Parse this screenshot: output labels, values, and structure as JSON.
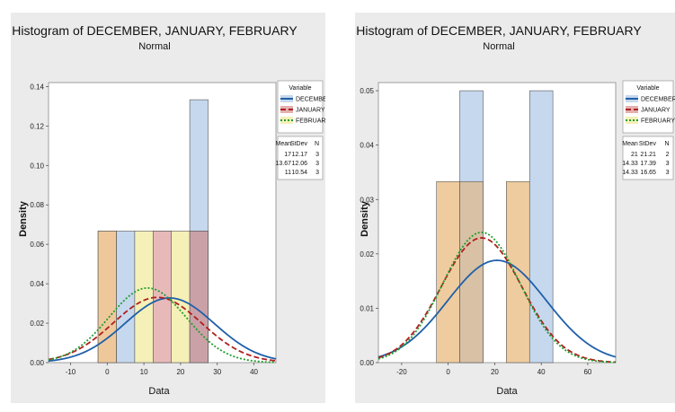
{
  "chart_data": [
    {
      "type": "histogram",
      "title": "Histogram of DECEMBER, JANUARY, FEBRUARY",
      "subtitle": "Normal",
      "xlabel": "Data",
      "ylabel": "Density",
      "xlim": [
        -16,
        46
      ],
      "ylim": [
        0,
        0.142
      ],
      "x_ticks": [
        -10,
        0,
        10,
        20,
        30,
        40
      ],
      "y_ticks": [
        0.0,
        0.02,
        0.04,
        0.06,
        0.08,
        0.1,
        0.12,
        0.14
      ],
      "y_tick_labels": [
        "0.00",
        "0.02",
        "0.04",
        "0.06",
        "0.08",
        "0.10",
        "0.12",
        "0.14"
      ],
      "grid": false,
      "legend_position": "right",
      "legend_title": "Variable",
      "stats_headers": [
        "Mean",
        "StDev",
        "N"
      ],
      "series": [
        {
          "name": "DECEMBER",
          "line_color": "#1f5fa8",
          "fill_color": "#c6d8ee",
          "dash": "solid",
          "mean": 17,
          "stdev": 12.17,
          "n": 3,
          "mean_label": "17",
          "stdev_label": "12.17",
          "n_label": "3",
          "bars": [
            {
              "start": 2.5,
              "end": 7.5,
              "density": 0.0667
            },
            {
              "start": 22.5,
              "end": 27.5,
              "density": 0.1333
            }
          ]
        },
        {
          "name": "JANUARY",
          "line_color": "#b01f1f",
          "fill_color": "#e3b0b0",
          "dash": "dashed",
          "mean": 13.67,
          "stdev": 12.06,
          "n": 3,
          "mean_label": "13.67",
          "stdev_label": "12.06",
          "n_label": "3",
          "bars": [
            {
              "start": -2.5,
              "end": 2.5,
              "density": 0.0667
            },
            {
              "start": 12.5,
              "end": 17.5,
              "density": 0.0667
            },
            {
              "start": 22.5,
              "end": 27.5,
              "density": 0.0667
            }
          ]
        },
        {
          "name": "FEBRUARY",
          "line_color": "#1f9e2f",
          "fill_color": "#f5f0b8",
          "dash": "dotted",
          "mean": 11,
          "stdev": 10.54,
          "n": 3,
          "mean_label": "11",
          "stdev_label": "10.54",
          "n_label": "3",
          "bars": [
            {
              "start": 7.5,
              "end": 12.5,
              "density": 0.0667
            },
            {
              "start": 17.5,
              "end": 22.5,
              "density": 0.0667
            }
          ]
        }
      ],
      "overlap_bars": [
        {
          "start": -2.5,
          "end": 2.5,
          "density": 0.0667,
          "color": "#eec99a"
        },
        {
          "start": 12.5,
          "end": 17.5,
          "density": 0.0667,
          "color": "#e8b9b9"
        },
        {
          "start": 22.5,
          "end": 27.5,
          "density": 0.0667,
          "color": "#c9a0a8"
        }
      ]
    },
    {
      "type": "histogram",
      "title": "Histogram of DECEMBER, JANUARY, FEBRUARY",
      "subtitle": "Normal",
      "xlabel": "Data",
      "ylabel": "Density",
      "xlim": [
        -30,
        72
      ],
      "ylim": [
        0,
        0.0515
      ],
      "x_ticks": [
        -20,
        0,
        20,
        40,
        60
      ],
      "y_ticks": [
        0.0,
        0.01,
        0.02,
        0.03,
        0.04,
        0.05
      ],
      "y_tick_labels": [
        "0.00",
        "0.01",
        "0.02",
        "0.03",
        "0.04",
        "0.05"
      ],
      "grid": false,
      "legend_position": "right",
      "legend_title": "Variable",
      "stats_headers": [
        "Mean",
        "StDev",
        "N"
      ],
      "series": [
        {
          "name": "DECEMBER",
          "line_color": "#1f5fa8",
          "fill_color": "#c6d8ee",
          "dash": "solid",
          "mean": 21,
          "stdev": 21.21,
          "n": 2,
          "mean_label": "21",
          "stdev_label": "21.21",
          "n_label": "2",
          "bars": [
            {
              "start": 5,
              "end": 15,
              "density": 0.05
            },
            {
              "start": 35,
              "end": 45,
              "density": 0.05
            }
          ]
        },
        {
          "name": "JANUARY",
          "line_color": "#b01f1f",
          "fill_color": "#e3b0b0",
          "dash": "dashed",
          "mean": 14.33,
          "stdev": 17.39,
          "n": 3,
          "mean_label": "14.33",
          "stdev_label": "17.39",
          "n_label": "3",
          "bars": []
        },
        {
          "name": "FEBRUARY",
          "line_color": "#1f9e2f",
          "fill_color": "#f5f0b8",
          "dash": "dotted",
          "mean": 14.33,
          "stdev": 16.65,
          "n": 3,
          "mean_label": "14.33",
          "stdev_label": "16.65",
          "n_label": "3",
          "bars": []
        }
      ],
      "overlap_bars": [
        {
          "start": -5,
          "end": 5,
          "density": 0.0333,
          "color": "#eec99a"
        },
        {
          "start": 5,
          "end": 15,
          "density": 0.0333,
          "color": "#d9c0a0"
        },
        {
          "start": 25,
          "end": 35,
          "density": 0.0333,
          "color": "#eec99a"
        }
      ]
    }
  ]
}
